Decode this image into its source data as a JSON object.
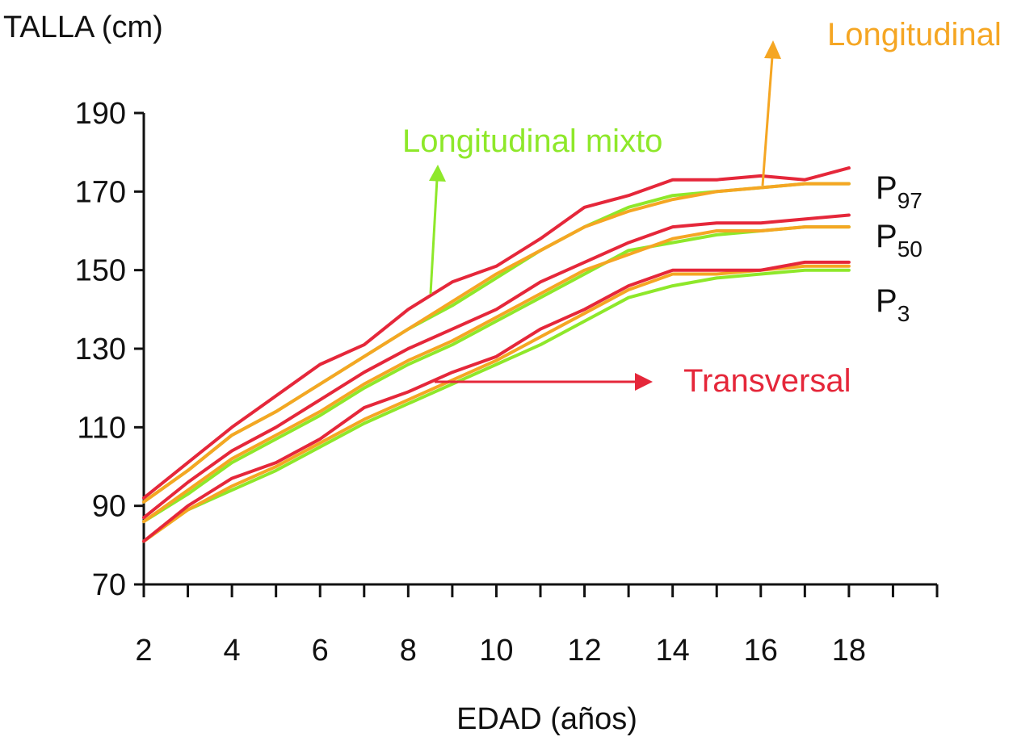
{
  "chart_data": {
    "type": "line",
    "ylabel": "TALLA (cm)",
    "xlabel": "EDAD (años)",
    "xlim": [
      2,
      20
    ],
    "ylim": [
      70,
      190
    ],
    "x_ticks": [
      2,
      4,
      6,
      8,
      10,
      12,
      14,
      16,
      18
    ],
    "y_ticks": [
      70,
      90,
      110,
      130,
      150,
      170,
      190
    ],
    "colors": {
      "longitudinal": "#f5a623",
      "longitudinal_mixto": "#8ee82a",
      "transversal": "#e5273a"
    },
    "annotations": {
      "longitudinal": "Longitudinal",
      "longitudinal_mixto": "Longitudinal mixto",
      "transversal": "Transversal"
    },
    "percentile_labels": [
      {
        "main": "P",
        "sub": "97"
      },
      {
        "main": "P",
        "sub": "50"
      },
      {
        "main": "P",
        "sub": "3"
      }
    ],
    "x": [
      2,
      3,
      4,
      5,
      6,
      7,
      8,
      9,
      10,
      11,
      12,
      13,
      14,
      15,
      16,
      17,
      18
    ],
    "series": [
      {
        "group": "longitudinal_mixto",
        "percentile": "P97",
        "values": [
          91,
          99,
          108,
          114,
          121,
          128,
          135,
          141,
          148,
          155,
          161,
          166,
          169,
          170,
          171,
          172,
          172
        ]
      },
      {
        "group": "longitudinal_mixto",
        "percentile": "P50",
        "values": [
          86,
          93,
          101,
          107,
          113,
          120,
          126,
          131,
          137,
          143,
          149,
          155,
          157,
          159,
          160,
          161,
          161
        ]
      },
      {
        "group": "longitudinal_mixto",
        "percentile": "P3",
        "values": [
          81,
          89,
          94,
          99,
          105,
          111,
          116,
          121,
          126,
          131,
          137,
          143,
          146,
          148,
          149,
          150,
          150
        ]
      },
      {
        "group": "longitudinal",
        "percentile": "P97",
        "values": [
          91,
          99,
          108,
          114,
          121,
          128,
          135,
          142,
          149,
          155,
          161,
          165,
          168,
          170,
          171,
          172,
          172
        ]
      },
      {
        "group": "longitudinal",
        "percentile": "P50",
        "values": [
          86,
          94,
          102,
          108,
          114,
          121,
          127,
          132,
          138,
          144,
          150,
          154,
          158,
          160,
          160,
          161,
          161
        ]
      },
      {
        "group": "longitudinal",
        "percentile": "P3",
        "values": [
          81,
          89,
          95,
          100,
          106,
          112,
          117,
          122,
          127,
          133,
          139,
          145,
          149,
          149,
          150,
          151,
          151
        ]
      },
      {
        "group": "transversal",
        "percentile": "P97",
        "values": [
          92,
          101,
          110,
          118,
          126,
          131,
          140,
          147,
          151,
          158,
          166,
          169,
          173,
          173,
          174,
          173,
          176
        ]
      },
      {
        "group": "transversal",
        "percentile": "P50",
        "values": [
          87,
          96,
          104,
          110,
          117,
          124,
          130,
          135,
          140,
          147,
          152,
          157,
          161,
          162,
          162,
          163,
          164
        ]
      },
      {
        "group": "transversal",
        "percentile": "P3",
        "values": [
          81,
          90,
          97,
          101,
          107,
          115,
          119,
          124,
          128,
          135,
          140,
          146,
          150,
          150,
          150,
          152,
          152
        ]
      }
    ]
  }
}
